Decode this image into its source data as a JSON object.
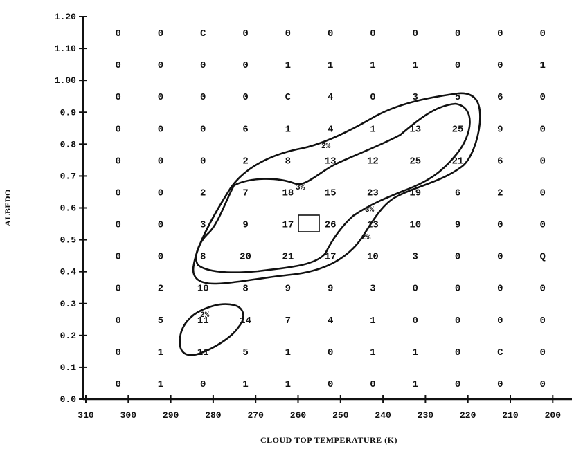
{
  "chart_data": {
    "type": "heatmap",
    "title": "",
    "xlabel": "CLOUD TOP TEMPERATURE (K)",
    "ylabel": "ALBEDO",
    "x_tick_labels": [
      "310",
      "300",
      "290",
      "280",
      "270",
      "260",
      "250",
      "240",
      "230",
      "220",
      "210",
      "200"
    ],
    "y_tick_labels": [
      "0.0",
      "0.1",
      "0.2",
      "0.3",
      "0.4",
      "0.5",
      "0.6",
      "0.7",
      "0.8",
      "0.9",
      "1.00",
      "1.10",
      "1.20"
    ],
    "xlim": [
      310,
      200
    ],
    "ylim": [
      0.0,
      1.2
    ],
    "x_bin_centers": [
      305,
      295,
      285,
      275,
      265,
      255,
      245,
      235,
      225,
      215,
      205
    ],
    "y_bin_centers": [
      1.15,
      1.05,
      0.95,
      0.85,
      0.75,
      0.65,
      0.55,
      0.45,
      0.35,
      0.25,
      0.15,
      0.05
    ],
    "rows": [
      [
        "0",
        "0",
        "C",
        "0",
        "0",
        "0",
        "0",
        "0",
        "0",
        "0",
        "0"
      ],
      [
        "0",
        "0",
        "0",
        "0",
        "1",
        "1",
        "1",
        "1",
        "0",
        "0",
        "1"
      ],
      [
        "0",
        "0",
        "0",
        "0",
        "C",
        "4",
        "0",
        "3",
        "5",
        "6",
        "0"
      ],
      [
        "0",
        "0",
        "0",
        "6",
        "1",
        "4",
        "1",
        "13",
        "25",
        "9",
        "0"
      ],
      [
        "0",
        "0",
        "0",
        "2",
        "8",
        "13",
        "12",
        "25",
        "21",
        "6",
        "0"
      ],
      [
        "0",
        "0",
        "2",
        "7",
        "18",
        "15",
        "23",
        "19",
        "6",
        "2",
        "0"
      ],
      [
        "0",
        "0",
        "3",
        "9",
        "17",
        "26",
        "13",
        "10",
        "9",
        "0",
        "0"
      ],
      [
        "0",
        "0",
        "8",
        "20",
        "21",
        "17",
        "10",
        "3",
        "0",
        "0",
        "Q"
      ],
      [
        "0",
        "2",
        "10",
        "8",
        "9",
        "9",
        "3",
        "0",
        "0",
        "0",
        "0"
      ],
      [
        "0",
        "5",
        "11",
        "14",
        "7",
        "4",
        "1",
        "0",
        "0",
        "0",
        "0"
      ],
      [
        "0",
        "1",
        "11",
        "5",
        "1",
        "0",
        "1",
        "1",
        "0",
        "C",
        "0"
      ],
      [
        "0",
        "1",
        "0",
        "1",
        "1",
        "0",
        "0",
        "1",
        "0",
        "0",
        "0"
      ]
    ],
    "highlighted_cell": {
      "x_bin": 255,
      "y_bin": 0.55,
      "value": "26"
    },
    "contour_labels": [
      "2%",
      "3%",
      "3%",
      "2%",
      "2%"
    ],
    "grid": false,
    "legend": "none"
  }
}
